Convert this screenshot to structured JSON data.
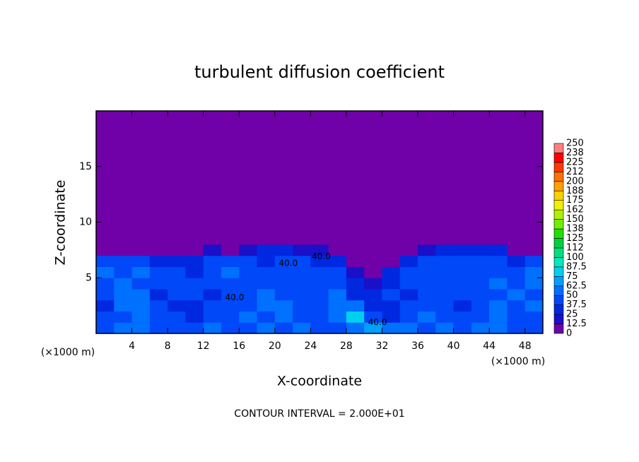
{
  "chart_data": {
    "type": "heatmap",
    "title": "turbulent diffusion coefficient",
    "xlabel": "X-coordinate",
    "ylabel": "Z-coordinate",
    "x_unit": "(×1000 m)",
    "footer": "CONTOUR INTERVAL = 2.000E+01",
    "xlim": [
      0,
      50
    ],
    "ylim": [
      0,
      20
    ],
    "xticks": [
      4,
      8,
      12,
      16,
      20,
      24,
      28,
      32,
      36,
      40,
      44,
      48
    ],
    "yticks": [
      5,
      10,
      15
    ],
    "x_edges": [
      0,
      2,
      4,
      6,
      8,
      10,
      12,
      14,
      16,
      18,
      20,
      22,
      24,
      26,
      28,
      30,
      32,
      34,
      36,
      38,
      40,
      42,
      44,
      46,
      48,
      50
    ],
    "y_edges": [
      0,
      1,
      2,
      3,
      4,
      5,
      6,
      7,
      8,
      10,
      20
    ],
    "z": [
      [
        45,
        55,
        50,
        40,
        45,
        40,
        50,
        45,
        40,
        55,
        45,
        50,
        45,
        40,
        60,
        65,
        55,
        50,
        45,
        50,
        40,
        55,
        50,
        45,
        40
      ],
      [
        40,
        45,
        55,
        45,
        40,
        30,
        45,
        40,
        50,
        45,
        55,
        45,
        40,
        50,
        80,
        40,
        35,
        40,
        50,
        45,
        40,
        45,
        55,
        40,
        45
      ],
      [
        35,
        50,
        60,
        40,
        35,
        30,
        40,
        45,
        40,
        55,
        50,
        40,
        45,
        55,
        60,
        30,
        30,
        40,
        45,
        40,
        35,
        40,
        50,
        45,
        50
      ],
      [
        40,
        55,
        50,
        35,
        40,
        40,
        35,
        40,
        45,
        50,
        45,
        40,
        40,
        50,
        35,
        25,
        40,
        35,
        40,
        45,
        40,
        45,
        40,
        50,
        45
      ],
      [
        45,
        50,
        45,
        40,
        45,
        40,
        40,
        45,
        40,
        45,
        40,
        45,
        40,
        45,
        25,
        15,
        35,
        40,
        45,
        40,
        40,
        45,
        50,
        45,
        55
      ],
      [
        50,
        45,
        50,
        40,
        40,
        35,
        45,
        50,
        45,
        40,
        45,
        40,
        45,
        40,
        20,
        10,
        25,
        40,
        45,
        40,
        45,
        40,
        45,
        40,
        50
      ],
      [
        40,
        45,
        40,
        35,
        30,
        25,
        40,
        45,
        40,
        30,
        40,
        40,
        35,
        30,
        10,
        5,
        10,
        30,
        40,
        45,
        40,
        45,
        40,
        35,
        40
      ],
      [
        5,
        10,
        10,
        10,
        5,
        5,
        15,
        10,
        20,
        25,
        25,
        20,
        15,
        5,
        5,
        5,
        5,
        5,
        15,
        25,
        30,
        35,
        30,
        10,
        5
      ],
      [
        0,
        0,
        0,
        0,
        0,
        0,
        0,
        0,
        0,
        0,
        0,
        0,
        0,
        0,
        0,
        0,
        0,
        0,
        0,
        5,
        10,
        10,
        5,
        0,
        0
      ],
      [
        0,
        0,
        0,
        0,
        0,
        0,
        0,
        0,
        0,
        0,
        0,
        0,
        0,
        0,
        0,
        0,
        0,
        0,
        0,
        0,
        0,
        0,
        0,
        0,
        0
      ]
    ],
    "colorbar_lim": [
      0,
      250
    ],
    "colorbar_ticks": [
      0,
      12.5,
      25,
      37.5,
      50,
      62.5,
      75,
      87.5,
      100,
      {
        "value": 112.5,
        "label": "112"
      },
      125,
      {
        "value": 137.5,
        "label": "138"
      },
      150,
      {
        "value": 162.5,
        "label": "162"
      },
      175,
      {
        "value": 187.5,
        "label": "188"
      },
      200,
      {
        "value": 212.5,
        "label": "212"
      },
      225,
      {
        "value": 237.5,
        "label": "238"
      },
      250
    ],
    "colors": [
      "#7000a8",
      "#1a10c8",
      "#0028e0",
      "#0048f8",
      "#0070ff",
      "#00a0ff",
      "#00d0f0",
      "#00e8c0",
      "#00e080",
      "#00d040",
      "#20e000",
      "#70f000",
      "#b0f000",
      "#f0f000",
      "#ffd000",
      "#ffa000",
      "#ff7000",
      "#ff3800",
      "#ff0000",
      "#ff8080"
    ],
    "annotations": [
      {
        "text": "40.0",
        "x": 21.5,
        "y": 6.3
      },
      {
        "text": "40.0",
        "x": 25.2,
        "y": 6.9
      },
      {
        "text": "40.0",
        "x": 15.5,
        "y": 3.2
      },
      {
        "text": "40.0",
        "x": 31.5,
        "y": 1.0
      }
    ]
  }
}
